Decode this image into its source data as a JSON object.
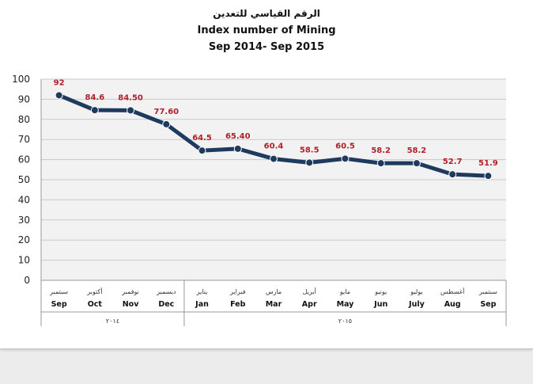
{
  "chart_data": {
    "type": "line",
    "title_ar": "الرقم القياسي للتعدين",
    "title": "Index number of Mining",
    "subtitle": "Sep 2014- Sep 2015",
    "categories": [
      "Sep",
      "Oct",
      "Nov",
      "Dec",
      "Jan",
      "Feb",
      "Mar",
      "Apr",
      "May",
      "Jun",
      "July",
      "Aug",
      "Sep"
    ],
    "categories_ar": [
      "سبتمبر",
      "أكتوبر",
      "نوفمبر",
      "ديسمبر",
      "يناير",
      "فبراير",
      "مارس",
      "أبريل",
      "مايو",
      "يونيو",
      "يوليو",
      "أغسطس",
      "سبتمبر"
    ],
    "values": [
      92,
      84.6,
      84.5,
      77.6,
      64.5,
      65.4,
      60.4,
      58.5,
      60.5,
      58.2,
      58.2,
      52.7,
      51.9
    ],
    "value_labels": [
      "92",
      "84.6",
      "84.50",
      "77.60",
      "64.5",
      "65.40",
      "60.4",
      "58.5",
      "60.5",
      "58.2",
      "58.2",
      "52.7",
      "51.9"
    ],
    "year_groups": [
      {
        "label": "٢٠١٤",
        "count": 4
      },
      {
        "label": "٢٠١٥",
        "count": 9
      }
    ],
    "yticks": [
      "0",
      "10",
      "20",
      "30",
      "40",
      "50",
      "60",
      "70",
      "80",
      "90",
      "100"
    ],
    "ylim": [
      0,
      100
    ],
    "grid": true,
    "colors": {
      "line": "#1f3a5f",
      "marker": "#1f3a5f",
      "label": "#b0202a",
      "plot_bg": "#f2f2f2"
    }
  }
}
